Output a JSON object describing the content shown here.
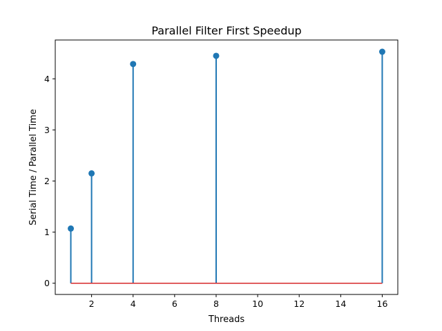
{
  "chart_data": {
    "type": "stem",
    "title": "Parallel Filter First Speedup",
    "xlabel": "Threads",
    "ylabel": "Serial Time / Parallel Time",
    "x": [
      1,
      2,
      4,
      8,
      16
    ],
    "y": [
      1.07,
      2.15,
      4.29,
      4.45,
      4.53
    ],
    "xlim": [
      0.25,
      16.75
    ],
    "ylim": [
      -0.22,
      4.76
    ],
    "xticks": [
      2,
      4,
      6,
      8,
      10,
      12,
      14,
      16
    ],
    "yticks": [
      0,
      1,
      2,
      3,
      4
    ],
    "baseline": 0,
    "colors": {
      "stem": "#1f77b4",
      "marker": "#1f77b4",
      "baseline": "#d62728"
    }
  }
}
